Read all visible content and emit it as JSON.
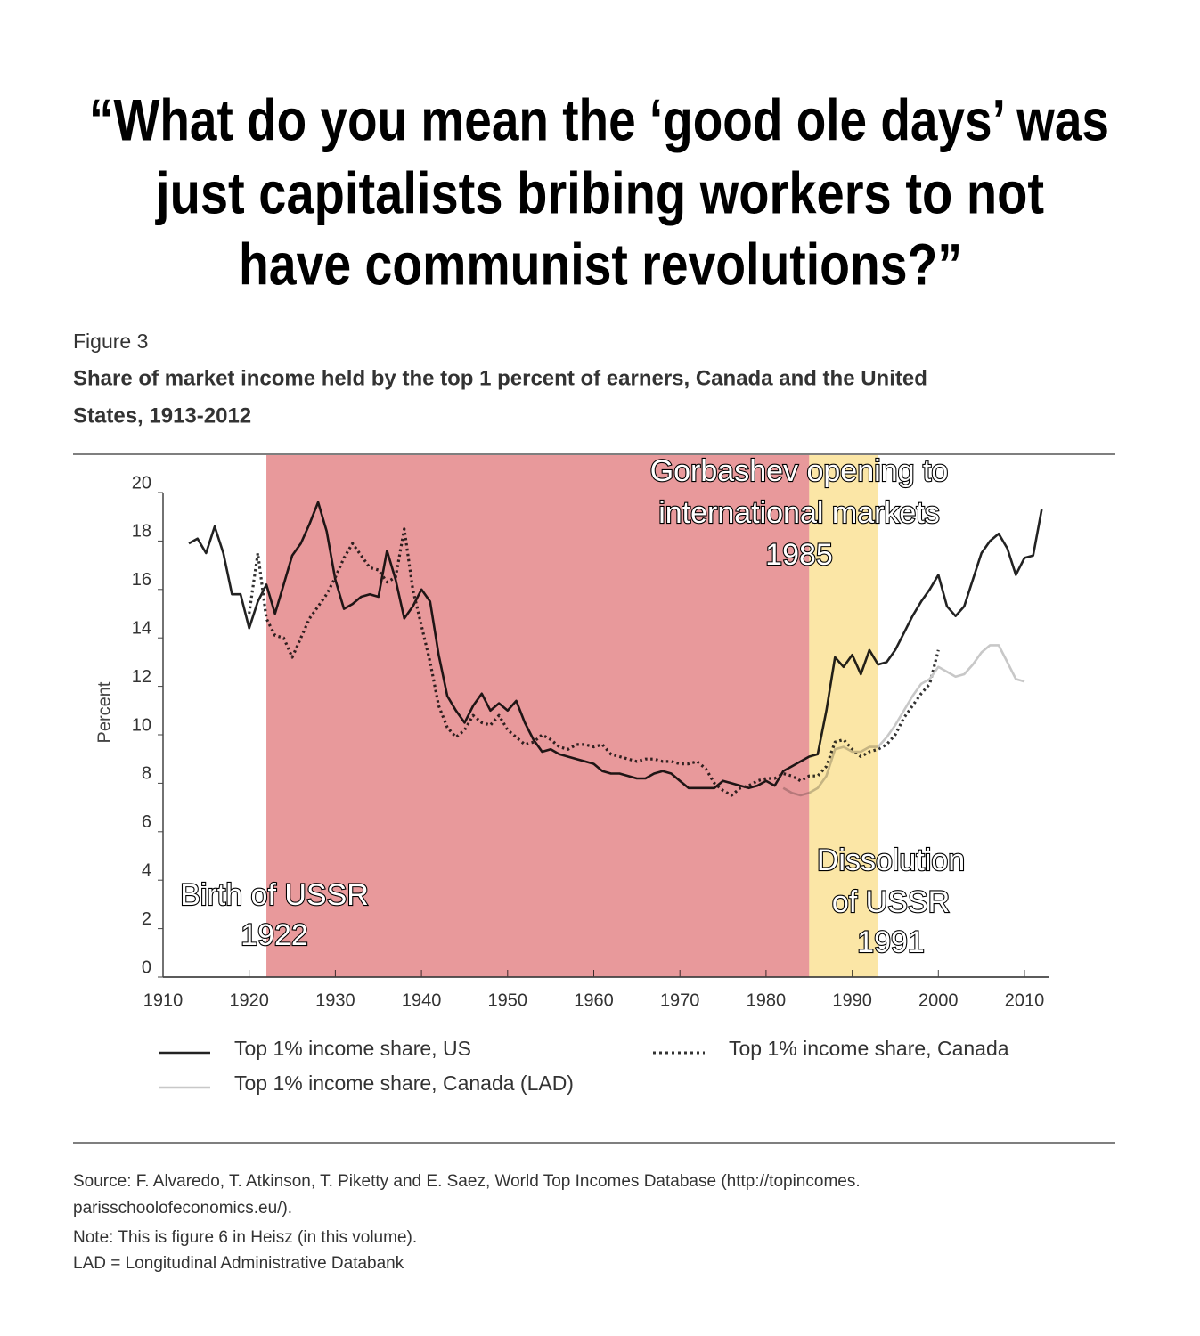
{
  "headline": [
    "“What do you mean the ‘good ole days’ was",
    "just capitalists bribing workers to not",
    "have communist revolutions?”"
  ],
  "chart_data": {
    "type": "line",
    "figure_label": "Figure 3",
    "title": [
      "Share of market income held by the top 1 percent of earners, Canada and the United",
      "States, 1913-2012"
    ],
    "y_label": "Percent",
    "xlim": [
      1910,
      2012
    ],
    "xticks": [
      1910,
      1920,
      1930,
      1940,
      1950,
      1960,
      1970,
      1980,
      1990,
      2000,
      2010
    ],
    "ylim": [
      0,
      20
    ],
    "yticks": [
      0,
      2,
      4,
      6,
      8,
      10,
      12,
      14,
      16,
      18,
      20
    ],
    "shaded_regions": [
      {
        "start": 1922,
        "end": 1985,
        "color": "#e8999b"
      },
      {
        "start": 1985,
        "end": 1993,
        "color": "#fbe6a6"
      }
    ],
    "annotations": [
      {
        "lines": [
          "Birth of USSR",
          "1922"
        ]
      },
      {
        "lines": [
          "Gorbashev opening to",
          "international markets",
          "1985"
        ]
      },
      {
        "lines": [
          "Dissolution",
          "of USSR",
          "1991"
        ]
      }
    ],
    "series": [
      {
        "name": "Top 1% income share, US",
        "color": "#222222",
        "style": "solid",
        "x": [
          1913,
          1914,
          1915,
          1916,
          1917,
          1918,
          1919,
          1920,
          1921,
          1922,
          1923,
          1924,
          1925,
          1926,
          1927,
          1928,
          1929,
          1930,
          1931,
          1932,
          1933,
          1934,
          1935,
          1936,
          1937,
          1938,
          1939,
          1940,
          1941,
          1942,
          1943,
          1944,
          1945,
          1946,
          1947,
          1948,
          1949,
          1950,
          1951,
          1952,
          1953,
          1954,
          1955,
          1956,
          1957,
          1958,
          1959,
          1960,
          1961,
          1962,
          1963,
          1964,
          1965,
          1966,
          1967,
          1968,
          1969,
          1970,
          1971,
          1972,
          1973,
          1974,
          1975,
          1976,
          1977,
          1978,
          1979,
          1980,
          1981,
          1982,
          1983,
          1984,
          1985,
          1986,
          1987,
          1988,
          1989,
          1990,
          1991,
          1992,
          1993,
          1994,
          1995,
          1996,
          1997,
          1998,
          1999,
          2000,
          2001,
          2002,
          2003,
          2004,
          2005,
          2006,
          2007,
          2008,
          2009,
          2010,
          2011,
          2012
        ],
        "values": [
          17.9,
          18.1,
          17.5,
          18.6,
          17.5,
          15.8,
          15.8,
          14.4,
          15.5,
          16.2,
          15.0,
          16.2,
          17.4,
          17.9,
          18.7,
          19.6,
          18.4,
          16.4,
          15.2,
          15.4,
          15.7,
          15.8,
          15.7,
          17.6,
          16.4,
          14.8,
          15.3,
          16.0,
          15.5,
          13.3,
          11.6,
          11.0,
          10.5,
          11.2,
          11.7,
          11.0,
          11.3,
          11.0,
          11.4,
          10.5,
          9.8,
          9.3,
          9.4,
          9.2,
          9.1,
          9.0,
          8.9,
          8.8,
          8.5,
          8.4,
          8.4,
          8.3,
          8.2,
          8.2,
          8.4,
          8.5,
          8.4,
          8.1,
          7.8,
          7.8,
          7.8,
          7.8,
          8.1,
          8.0,
          7.9,
          7.8,
          7.9,
          8.1,
          7.9,
          8.5,
          8.7,
          8.9,
          9.1,
          9.2,
          11.0,
          13.2,
          12.8,
          13.3,
          12.5,
          13.5,
          12.9,
          13.0,
          13.5,
          14.2,
          14.9,
          15.5,
          16.0,
          16.6,
          15.3,
          14.9,
          15.3,
          16.4,
          17.5,
          18.0,
          18.3,
          17.7,
          16.6,
          17.3,
          17.4,
          19.3
        ]
      },
      {
        "name": "Top 1% income share, Canada",
        "color": "#333333",
        "style": "dotted",
        "x": [
          1920,
          1921,
          1922,
          1923,
          1924,
          1925,
          1926,
          1927,
          1928,
          1929,
          1930,
          1931,
          1932,
          1933,
          1934,
          1935,
          1936,
          1937,
          1938,
          1939,
          1940,
          1941,
          1942,
          1943,
          1944,
          1945,
          1946,
          1947,
          1948,
          1949,
          1950,
          1951,
          1952,
          1953,
          1954,
          1955,
          1956,
          1957,
          1958,
          1959,
          1960,
          1961,
          1962,
          1963,
          1964,
          1965,
          1966,
          1967,
          1968,
          1969,
          1970,
          1971,
          1972,
          1973,
          1974,
          1975,
          1976,
          1977,
          1978,
          1979,
          1980,
          1981,
          1982,
          1983,
          1984,
          1985,
          1986,
          1987,
          1988,
          1989,
          1990,
          1991,
          1992,
          1993,
          1994,
          1995,
          1996,
          1997,
          1998,
          1999,
          2000
        ],
        "values": [
          15.0,
          17.5,
          14.8,
          14.1,
          14.0,
          13.2,
          14.0,
          14.8,
          15.3,
          15.8,
          16.5,
          17.3,
          17.9,
          17.4,
          16.9,
          16.8,
          16.3,
          16.5,
          18.5,
          16.0,
          14.5,
          13.0,
          11.2,
          10.3,
          9.9,
          10.2,
          10.8,
          10.5,
          10.4,
          10.8,
          10.2,
          9.9,
          9.6,
          9.7,
          10.0,
          9.8,
          9.5,
          9.4,
          9.6,
          9.6,
          9.5,
          9.6,
          9.2,
          9.1,
          9.0,
          8.9,
          9.0,
          9.0,
          8.9,
          8.9,
          8.8,
          8.8,
          8.9,
          8.6,
          8.0,
          7.7,
          7.5,
          7.8,
          7.9,
          8.1,
          8.2,
          8.2,
          8.4,
          8.3,
          8.1,
          8.3,
          8.3,
          8.7,
          9.7,
          9.8,
          9.4,
          9.1,
          9.3,
          9.4,
          9.6,
          10.0,
          10.7,
          11.2,
          11.7,
          12.1,
          13.5
        ]
      },
      {
        "name": "Top 1% income share, Canada (LAD)",
        "color": "#c8c8c8",
        "style": "solid",
        "x": [
          1982,
          1983,
          1984,
          1985,
          1986,
          1987,
          1988,
          1989,
          1990,
          1991,
          1992,
          1993,
          1994,
          1995,
          1996,
          1997,
          1998,
          1999,
          2000,
          2001,
          2002,
          2003,
          2004,
          2005,
          2006,
          2007,
          2008,
          2009,
          2010
        ],
        "values": [
          7.8,
          7.6,
          7.5,
          7.6,
          7.8,
          8.3,
          9.4,
          9.5,
          9.3,
          9.3,
          9.5,
          9.5,
          9.9,
          10.4,
          11.0,
          11.6,
          12.1,
          12.3,
          12.8,
          12.6,
          12.4,
          12.5,
          12.9,
          13.4,
          13.7,
          13.7,
          13.0,
          12.3,
          12.2
        ]
      }
    ],
    "notes": [
      "Source: F. Alvaredo, T. Atkinson, T. Piketty and E. Saez, World Top Incomes Database (http://topincomes.",
      "parisschoolofeconomics.eu/).",
      "Note: This is figure 6 in Heisz (in this volume).",
      "LAD = Longitudinal Administrative Databank"
    ]
  }
}
